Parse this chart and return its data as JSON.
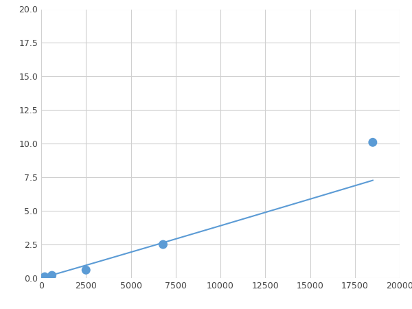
{
  "x": [
    200,
    600,
    2500,
    6800,
    18500
  ],
  "y": [
    0.1,
    0.2,
    0.6,
    2.5,
    10.1
  ],
  "line_color": "#5b9bd5",
  "marker_color": "#5b9bd5",
  "marker_size": 5,
  "line_width": 1.5,
  "xlim": [
    0,
    20000
  ],
  "ylim": [
    0,
    20.0
  ],
  "xticks": [
    0,
    2500,
    5000,
    7500,
    10000,
    12500,
    15000,
    17500,
    20000
  ],
  "yticks": [
    0.0,
    2.5,
    5.0,
    7.5,
    10.0,
    12.5,
    15.0,
    17.5,
    20.0
  ],
  "grid_color": "#d0d0d0",
  "background_color": "#ffffff",
  "figure_bg": "#ffffff"
}
